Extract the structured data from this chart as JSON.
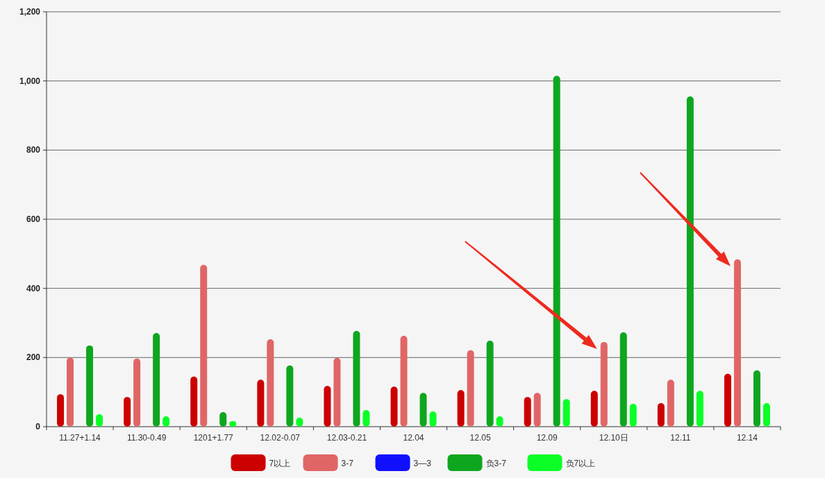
{
  "chart_data": {
    "type": "bar",
    "categories": [
      "11.27+1.14",
      "11.30-0.49",
      "1201+1.77",
      "12.02-0.07",
      "12.03-0.21",
      "12.04",
      "12.05",
      "12.09",
      "12.10日",
      "12.11",
      "12.14"
    ],
    "series": [
      {
        "name": "7以上",
        "color": "#cc0000",
        "values": [
          94,
          86,
          145,
          136,
          118,
          116,
          106,
          86,
          104,
          68,
          153
        ]
      },
      {
        "name": "3-7",
        "color": "#e06666",
        "values": [
          200,
          197,
          468,
          253,
          199,
          263,
          221,
          98,
          245,
          136,
          484
        ]
      },
      {
        "name": "3—3",
        "color": "#1010ff",
        "values": [
          0,
          0,
          0,
          0,
          0,
          0,
          0,
          0,
          0,
          0,
          0
        ]
      },
      {
        "name": "负3-7",
        "color": "#0fa61f",
        "values": [
          235,
          271,
          42,
          177,
          277,
          98,
          249,
          1015,
          273,
          955,
          163
        ]
      },
      {
        "name": "负7以上",
        "color": "#0bff27",
        "values": [
          36,
          30,
          16,
          26,
          48,
          44,
          30,
          80,
          66,
          104,
          68
        ]
      }
    ],
    "ylim": [
      0,
      1200
    ],
    "yticks": [
      0,
      200,
      400,
      600,
      800,
      {
        "value": 1000,
        "label": "1,000"
      },
      {
        "value": 1200,
        "label": "1,200"
      }
    ],
    "grid": "y",
    "legend": "bottom"
  }
}
